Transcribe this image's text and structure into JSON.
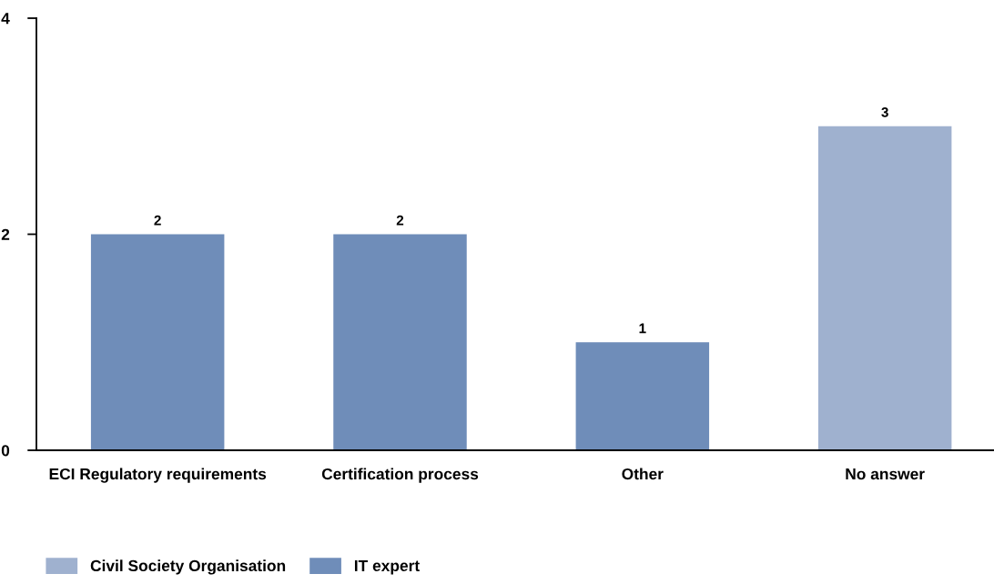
{
  "chart_data": {
    "type": "bar",
    "categories": [
      "ECI Regulatory requirements",
      "Certification process",
      "Other",
      "No answer"
    ],
    "series": [
      {
        "name": "Civil Society Organisation",
        "color": "#9fb1cf",
        "values": [
          null,
          null,
          null,
          3
        ]
      },
      {
        "name": "IT expert",
        "color": "#6f8db9",
        "values": [
          2,
          2,
          1,
          null
        ]
      }
    ],
    "stacked": true,
    "ylim": [
      0,
      4
    ],
    "yticks": [
      0,
      2,
      4
    ],
    "data_labels": true,
    "legend": "bottom left",
    "grid": false
  }
}
